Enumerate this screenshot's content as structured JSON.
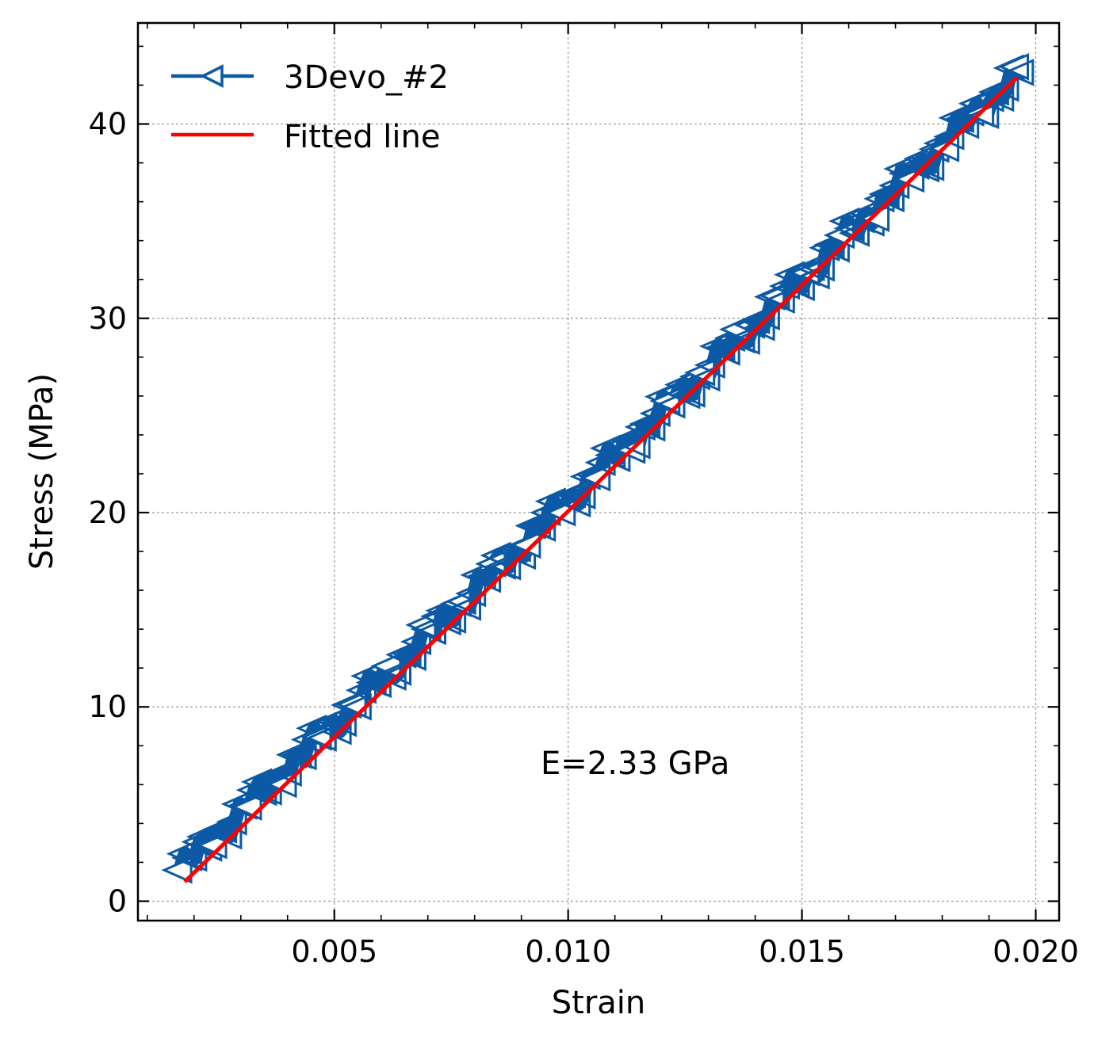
{
  "chart_data": {
    "type": "line",
    "xlabel": "Strain",
    "ylabel": "Stress (MPa)",
    "xlim": [
      0.0008,
      0.0205
    ],
    "ylim": [
      -1.0,
      45.2
    ],
    "xticks": [
      0.005,
      0.01,
      0.015,
      0.02
    ],
    "xtick_labels": [
      "0.005",
      "0.010",
      "0.015",
      "0.020"
    ],
    "yticks": [
      0,
      10,
      20,
      30,
      40
    ],
    "ytick_labels": [
      "0",
      "10",
      "20",
      "30",
      "40"
    ],
    "grid": true,
    "legend_position": "top-left",
    "annotation": {
      "text": "E=2.33 GPa",
      "x": 0.0095,
      "y": 7.0
    },
    "series": [
      {
        "name": "3Devo_#2",
        "kind": "markers-line",
        "marker": "triangle-left-open",
        "color": "#0c5aa6",
        "x_start": 0.0017,
        "x_end": 0.0197,
        "y_start": 1.6,
        "y_end": 42.8,
        "point_count": 170
      },
      {
        "name": "Fitted line",
        "kind": "line",
        "color": "#ff0000",
        "x": [
          0.0018,
          0.0196
        ],
        "y": [
          1.0,
          42.4
        ]
      }
    ]
  }
}
